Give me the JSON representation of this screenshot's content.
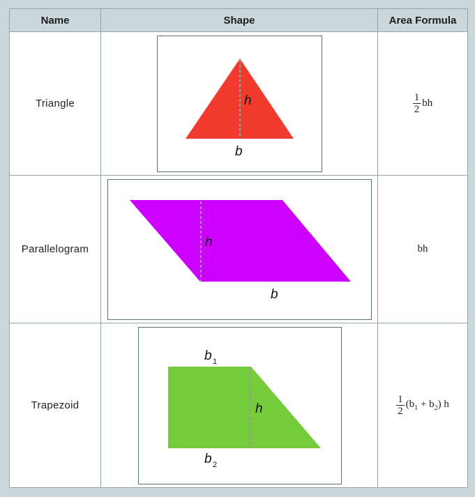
{
  "headers": {
    "name": "Name",
    "shape": "Shape",
    "formula": "Area Formula"
  },
  "rows": [
    {
      "name": "Triangle",
      "color": "#f23b2f",
      "labels": {
        "h": "h",
        "b": "b"
      },
      "formula": {
        "fraction": {
          "num": "1",
          "den": "2"
        },
        "rest": "bh"
      }
    },
    {
      "name": "Parallelogram",
      "color": "#cc00ff",
      "labels": {
        "h": "h",
        "b": "b"
      },
      "formula": {
        "text": "bh"
      }
    },
    {
      "name": "Trapezoid",
      "color": "#74cc3b",
      "labels": {
        "h": "h",
        "b1": "b",
        "b1_sub": "1",
        "b2": "b",
        "b2_sub": "2"
      },
      "formula": {
        "fraction": {
          "num": "1",
          "den": "2"
        },
        "open": "(b",
        "sub1": "1",
        "mid": " + b",
        "sub2": "2",
        "close": ") h"
      }
    }
  ],
  "colors": {
    "header_bg": "#ccd7db",
    "border": "#95a4ab",
    "dashed_height": "#999999"
  }
}
